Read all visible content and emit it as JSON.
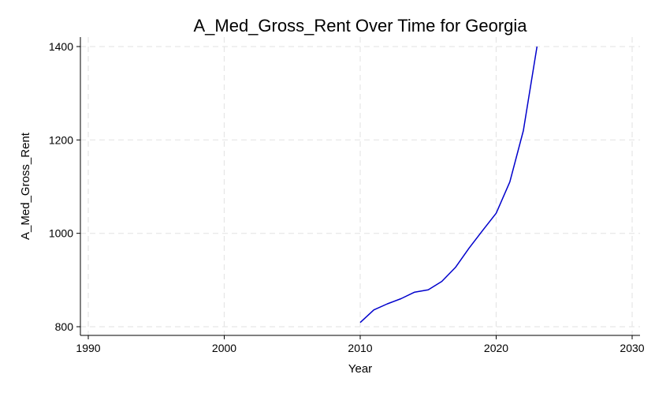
{
  "chart_data": {
    "type": "line",
    "title": "A_Med_Gross_Rent Over Time for Georgia",
    "xlabel": "Year",
    "ylabel": "A_Med_Gross_Rent",
    "xlim": [
      1990,
      2030
    ],
    "ylim": [
      800,
      1400
    ],
    "xticks": [
      1990,
      2000,
      2010,
      2020,
      2030
    ],
    "yticks": [
      800,
      1000,
      1200,
      1400
    ],
    "grid": true,
    "series": [
      {
        "color": "#0000cc",
        "x": [
          2010,
          2011,
          2012,
          2013,
          2014,
          2015,
          2016,
          2017,
          2018,
          2019,
          2020,
          2021,
          2022,
          2023
        ],
        "y": [
          809,
          836,
          849,
          860,
          874,
          879,
          897,
          927,
          968,
          1006,
          1043,
          1110,
          1220,
          1400
        ]
      }
    ]
  }
}
